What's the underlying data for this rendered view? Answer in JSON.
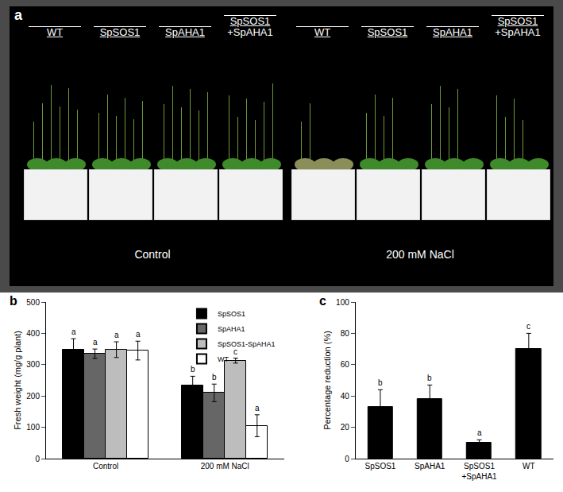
{
  "photo": {
    "panel": "a",
    "groups": [
      {
        "condition": "Control",
        "labels": [
          "WT",
          "SpSOS1",
          "SpAHA1",
          "SpSOS1\n+SpAHA1"
        ]
      },
      {
        "condition": "200 mM NaCl",
        "labels": [
          "WT",
          "SpSOS1",
          "SpAHA1",
          "SpSOS1\n+SpAHA1"
        ]
      }
    ]
  },
  "chart_data": [
    {
      "type": "bar",
      "panel": "b",
      "categories": [
        "Control",
        "200 mM NaCl"
      ],
      "y_label": "Fresh weight (mg/g plant)",
      "ylim": [
        0,
        500
      ],
      "yticks": [
        0,
        100,
        200,
        300,
        400,
        500
      ],
      "legend": "upper right",
      "series": [
        {
          "name": "SpSOS1",
          "color": "#000000",
          "values": [
            348,
            233
          ],
          "error": [
            35,
            30
          ],
          "significance": [
            "a",
            "b"
          ]
        },
        {
          "name": "SpAHA1",
          "color": "#666666",
          "values": [
            335,
            210
          ],
          "error": [
            15,
            28
          ],
          "significance": [
            "a",
            "b"
          ]
        },
        {
          "name": "SpSOS1-SpAHA1",
          "color": "#bdbdbd",
          "values": [
            348,
            313
          ],
          "error": [
            25,
            8
          ],
          "significance": [
            "a",
            "c"
          ]
        },
        {
          "name": "WT",
          "color": "#ffffff",
          "values": [
            345,
            105
          ],
          "error": [
            30,
            35
          ],
          "significance": [
            "a",
            "a"
          ]
        }
      ]
    },
    {
      "type": "bar",
      "panel": "c",
      "categories": [
        "SpSOS1",
        "SpAHA1",
        "SpSOS1\n+SpAHA1",
        "WT"
      ],
      "values": [
        33,
        38,
        10,
        70
      ],
      "error": [
        11,
        9,
        2,
        10
      ],
      "significance": [
        "b",
        "b",
        "a",
        "c"
      ],
      "color": "#000000",
      "y_label": "Percentage reduction (%)",
      "ylim": [
        0,
        100
      ],
      "yticks": [
        0,
        20,
        40,
        60,
        80,
        100
      ]
    }
  ]
}
